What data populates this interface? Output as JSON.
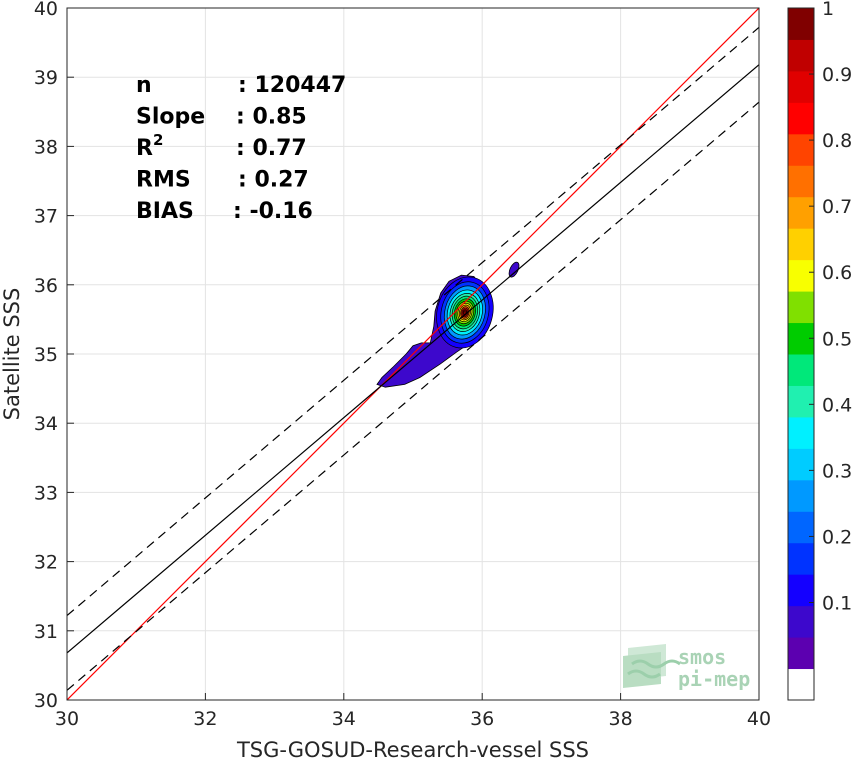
{
  "chart_data": {
    "type": "scatter",
    "subtype": "density-contour",
    "title": "",
    "xlabel": "TSG-GOSUD-Research-vessel SSS",
    "ylabel": "Satellite SSS",
    "xlim": [
      30,
      40
    ],
    "ylim": [
      30,
      40
    ],
    "xticks": [
      30,
      32,
      34,
      36,
      38,
      40
    ],
    "yticks": [
      30,
      31,
      32,
      33,
      34,
      35,
      36,
      37,
      38,
      39,
      40
    ],
    "grid": true,
    "stats": [
      {
        "label": "n",
        "value": ": 120447"
      },
      {
        "label": "Slope",
        "value": ": 0.85"
      },
      {
        "label": "R",
        "sup": "2",
        "value": ": 0.77"
      },
      {
        "label": "RMS",
        "value": ": 0.27"
      },
      {
        "label": "BIAS",
        "value": ": -0.16"
      }
    ],
    "lines": [
      {
        "name": "one-to-one",
        "color": "#ff0000",
        "style": "solid",
        "slope": 1.0,
        "intercept": 0.0
      },
      {
        "name": "regression",
        "color": "#000000",
        "style": "solid",
        "slope": 0.85,
        "intercept": 5.18
      },
      {
        "name": "regression-plus-2rms",
        "color": "#000000",
        "style": "dashed",
        "slope": 0.85,
        "intercept": 5.72
      },
      {
        "name": "regression-minus-2rms",
        "color": "#000000",
        "style": "dashed",
        "slope": 0.85,
        "intercept": 4.64
      }
    ],
    "density_peak": {
      "x": 35.75,
      "y": 35.6
    },
    "colorbar": {
      "min": 0,
      "max": 1,
      "ticks": [
        "0.1",
        "0.2",
        "0.3",
        "0.4",
        "0.5",
        "0.6",
        "0.7",
        "0.8",
        "0.9",
        "1"
      ],
      "colors": [
        "#ffffff",
        "#5c00b0",
        "#3d08cc",
        "#1400ff",
        "#0033ff",
        "#0066ff",
        "#0099ff",
        "#00ccff",
        "#00f0ff",
        "#20f0b0",
        "#00e87a",
        "#00cc00",
        "#80e000",
        "#f8ff00",
        "#ffd000",
        "#ffa000",
        "#ff7000",
        "#ff4400",
        "#ff0000",
        "#e00000",
        "#c00000",
        "#800000"
      ]
    }
  },
  "logo": {
    "line1": "smos",
    "line2": "pi-mep"
  }
}
